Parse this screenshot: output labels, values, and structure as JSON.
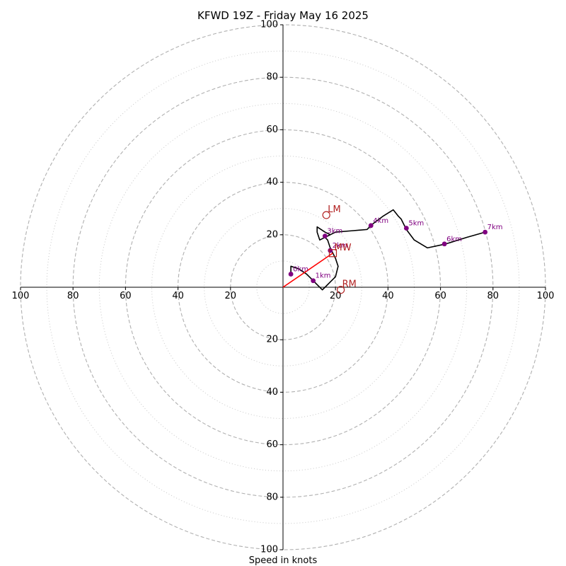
{
  "chart_data": {
    "type": "line",
    "title": "KFWD 19Z - Friday May 16 2025",
    "xlabel": "Speed in knots",
    "ylabel": "",
    "xlim": [
      -100,
      100
    ],
    "ylim": [
      -100,
      100
    ],
    "grid": true,
    "ring_major": [
      20,
      40,
      60,
      80,
      100
    ],
    "ring_minor": [
      10,
      30,
      50,
      70,
      90
    ],
    "axis_ticks": [
      20,
      40,
      60,
      80,
      100
    ],
    "tick_labels": [
      "20",
      "40",
      "60",
      "80",
      "100"
    ],
    "colors": {
      "hodograph": "#000000",
      "height_marker": "#800080",
      "motion": "#b22222",
      "shear_vector": "#ff0000",
      "grid_major": "#b0b0b0",
      "grid_minor": "#c8c8c8"
    },
    "series": [
      {
        "x": [
          3,
          3,
          6,
          9,
          11,
          13,
          15,
          16,
          18,
          20,
          21,
          20,
          18,
          17,
          16,
          18,
          16,
          13,
          13,
          14,
          20,
          26,
          32,
          34,
          38,
          42,
          44,
          45,
          47,
          50,
          55,
          62,
          70,
          77
        ],
        "y": [
          5,
          8,
          7,
          5,
          3,
          1,
          -1,
          0,
          2,
          4,
          8,
          11,
          15,
          18,
          19,
          20,
          21,
          23,
          21,
          18,
          21,
          21.5,
          22,
          24,
          27,
          29.5,
          27,
          26,
          22,
          18,
          15,
          16.5,
          19,
          21
        ]
      }
    ],
    "height_markers": [
      {
        "label": "0km",
        "x": 3,
        "y": 5
      },
      {
        "label": "1km",
        "x": 11.5,
        "y": 2.5
      },
      {
        "label": "2km",
        "x": 18,
        "y": 14
      },
      {
        "label": "3km",
        "x": 16,
        "y": 19.5
      },
      {
        "label": "4km",
        "x": 33.5,
        "y": 23.5
      },
      {
        "label": "5km",
        "x": 47,
        "y": 22.5
      },
      {
        "label": "6km",
        "x": 61.5,
        "y": 16.5
      },
      {
        "label": "7km",
        "x": 77,
        "y": 21
      }
    ],
    "storm_motions": [
      {
        "label": "LM",
        "x": 16.5,
        "y": 27.5,
        "marker": "circle"
      },
      {
        "label": "RM",
        "x": 22,
        "y": -1,
        "marker": "circle"
      },
      {
        "label": "MW",
        "x": 19,
        "y": 13,
        "marker": "square"
      }
    ],
    "shear_vector": {
      "x": [
        0,
        19
      ],
      "y": [
        0,
        13
      ]
    }
  }
}
